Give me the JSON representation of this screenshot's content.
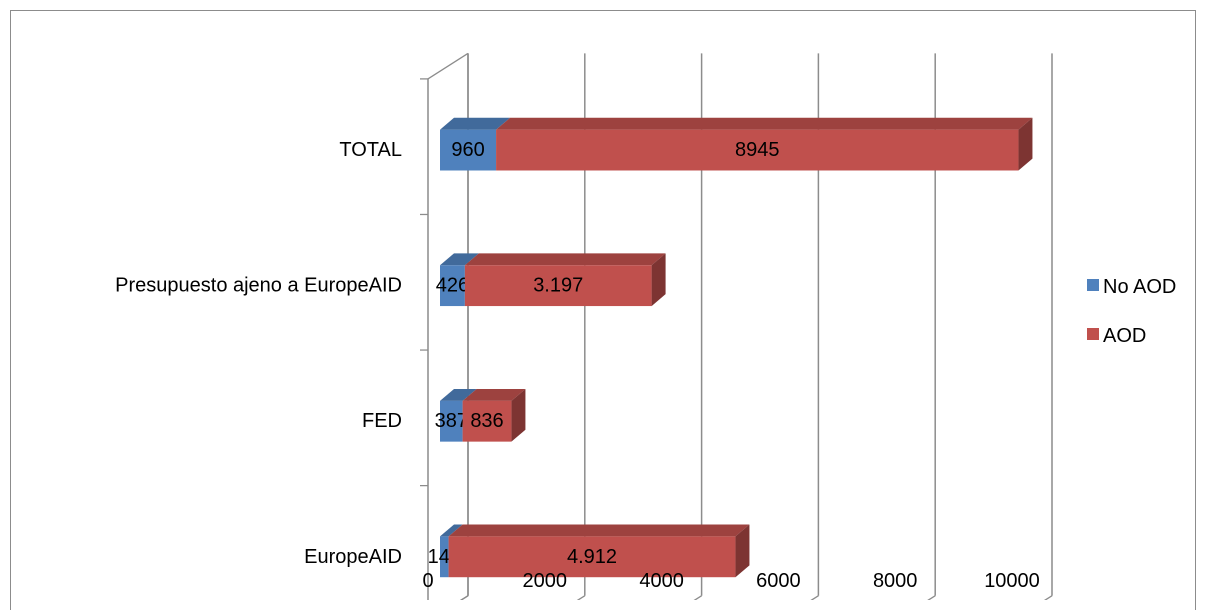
{
  "chart_data": {
    "type": "bar",
    "orientation": "horizontal",
    "stacked": true,
    "three_d": true,
    "categories": [
      "EuropeAID",
      "FED",
      "Presupuesto ajeno a EuropeAID",
      "TOTAL"
    ],
    "series": [
      {
        "name": "No AOD",
        "color": "#4f81bd",
        "values": [
          147,
          387,
          426,
          960
        ],
        "labels": [
          "147",
          "387",
          "426",
          "960"
        ]
      },
      {
        "name": "AOD",
        "color": "#c0504d",
        "values": [
          4912,
          836,
          3197,
          8945
        ],
        "labels": [
          "4.912",
          "836",
          "3.197",
          "8945"
        ]
      }
    ],
    "x_ticks": [
      "0",
      "2000",
      "4000",
      "6000",
      "8000",
      "10000"
    ],
    "xlim": [
      0,
      10000
    ],
    "grid": true,
    "legend": "right",
    "title": "",
    "xlabel": "",
    "ylabel": ""
  }
}
